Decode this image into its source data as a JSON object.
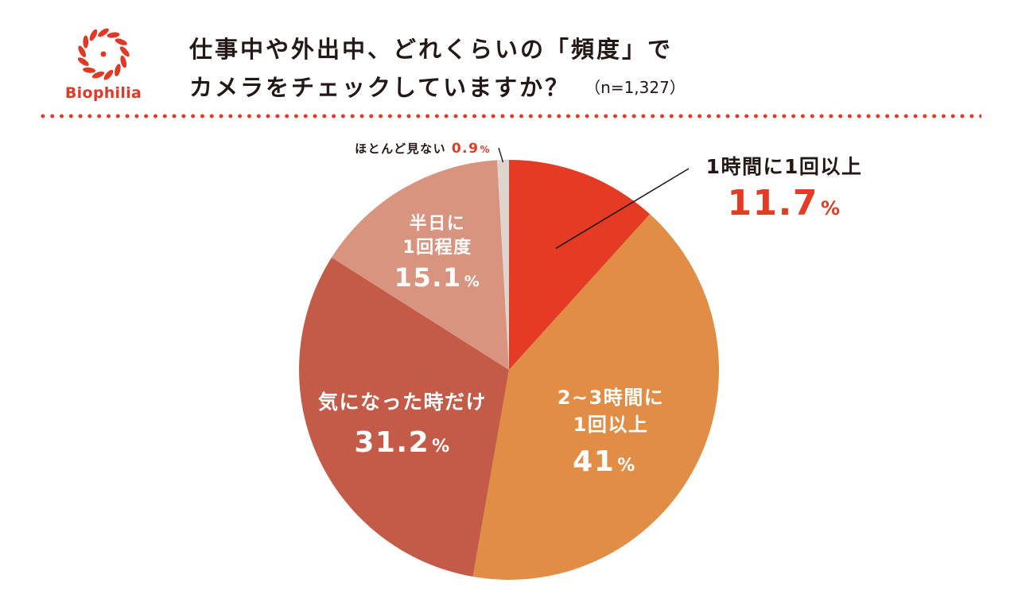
{
  "brand": {
    "name": "Biophilia",
    "accent_color": "#e03a26"
  },
  "title": {
    "line1": "仕事中や外出中、どれくらいの「頻度」で",
    "line2": "カメラをチェックしていますか？",
    "sample_size": "（n=1,327）"
  },
  "chart_data": {
    "type": "pie",
    "title": "仕事中や外出中、どれくらいの「頻度」でカメラをチェックしていますか？",
    "n": 1327,
    "unit": "%",
    "start_angle_deg": 0,
    "direction": "clockwise",
    "slices": [
      {
        "label_lines": [
          "1時間に1回以上"
        ],
        "value": 11.7,
        "value_label": "11.7",
        "color": "#e53a23",
        "label_position": "outside"
      },
      {
        "label_lines": [
          "2~3時間に",
          "1回以上"
        ],
        "value": 41,
        "value_label": "41",
        "color": "#e18d45",
        "label_position": "inside"
      },
      {
        "label_lines": [
          "気になった時だけ"
        ],
        "value": 31.2,
        "value_label": "31.2",
        "color": "#c45a48",
        "label_position": "inside"
      },
      {
        "label_lines": [
          "半日に",
          "1回程度"
        ],
        "value": 15.1,
        "value_label": "15.1",
        "color": "#d99480",
        "label_position": "inside"
      },
      {
        "label_lines": [
          "ほとんど見ない"
        ],
        "value": 0.9,
        "value_label": "0.9",
        "color": "#dfd5cf",
        "label_position": "outside"
      }
    ]
  }
}
